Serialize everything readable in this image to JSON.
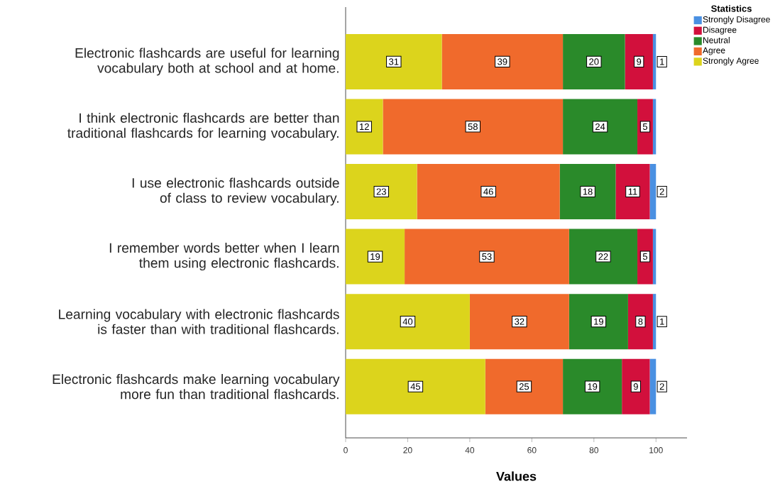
{
  "chart_data": {
    "type": "bar",
    "orientation": "horizontal",
    "stacked": true,
    "xlabel": "Values",
    "legend_title": "Statistics",
    "legend": "top right",
    "categories": [
      "Electronic flashcards are useful for learning vocabulary both at school and at home.",
      "I think electronic flashcards are better than traditional flashcards for learning vocabulary.",
      "I use electronic flashcards outside of class to review vocabulary.",
      "I remember words better when I learn them using electronic flashcards.",
      "Learning vocabulary with electronic flashcards is faster than with traditional flashcards.",
      "Electronic flashcards make learning vocabulary more fun than traditional flashcards."
    ],
    "series": [
      {
        "name": "Strongly Agree",
        "color": "#dcd41c",
        "values": [
          31,
          12,
          23,
          19,
          40,
          45
        ],
        "value_labels": [
          "31",
          "12",
          "23",
          "19",
          "40",
          "45"
        ]
      },
      {
        "name": "Agree",
        "color": "#f06a2c",
        "values": [
          39,
          58,
          46,
          53,
          32,
          25
        ],
        "value_labels": [
          "39",
          "58",
          "46",
          "53",
          "32",
          "25"
        ]
      },
      {
        "name": "Neutral",
        "color": "#2a8a2a",
        "values": [
          20,
          24,
          18,
          22,
          19,
          19
        ],
        "value_labels": [
          "20",
          "24",
          "18",
          "22",
          "19",
          "19"
        ]
      },
      {
        "name": "Disagree",
        "color": "#d2103c",
        "values": [
          9,
          5,
          11,
          5,
          8,
          9
        ],
        "value_labels": [
          "9",
          "5",
          "11",
          "5",
          "8",
          "9"
        ]
      },
      {
        "name": "Strongly Disagree",
        "color": "#4a90e2",
        "values": [
          1,
          1,
          2,
          1,
          1,
          2
        ],
        "value_labels": [
          "1",
          null,
          "2",
          null,
          "1",
          "2"
        ]
      }
    ],
    "xlim": [
      0,
      110
    ],
    "xticks": [
      0,
      20,
      40,
      60,
      80,
      100
    ]
  }
}
